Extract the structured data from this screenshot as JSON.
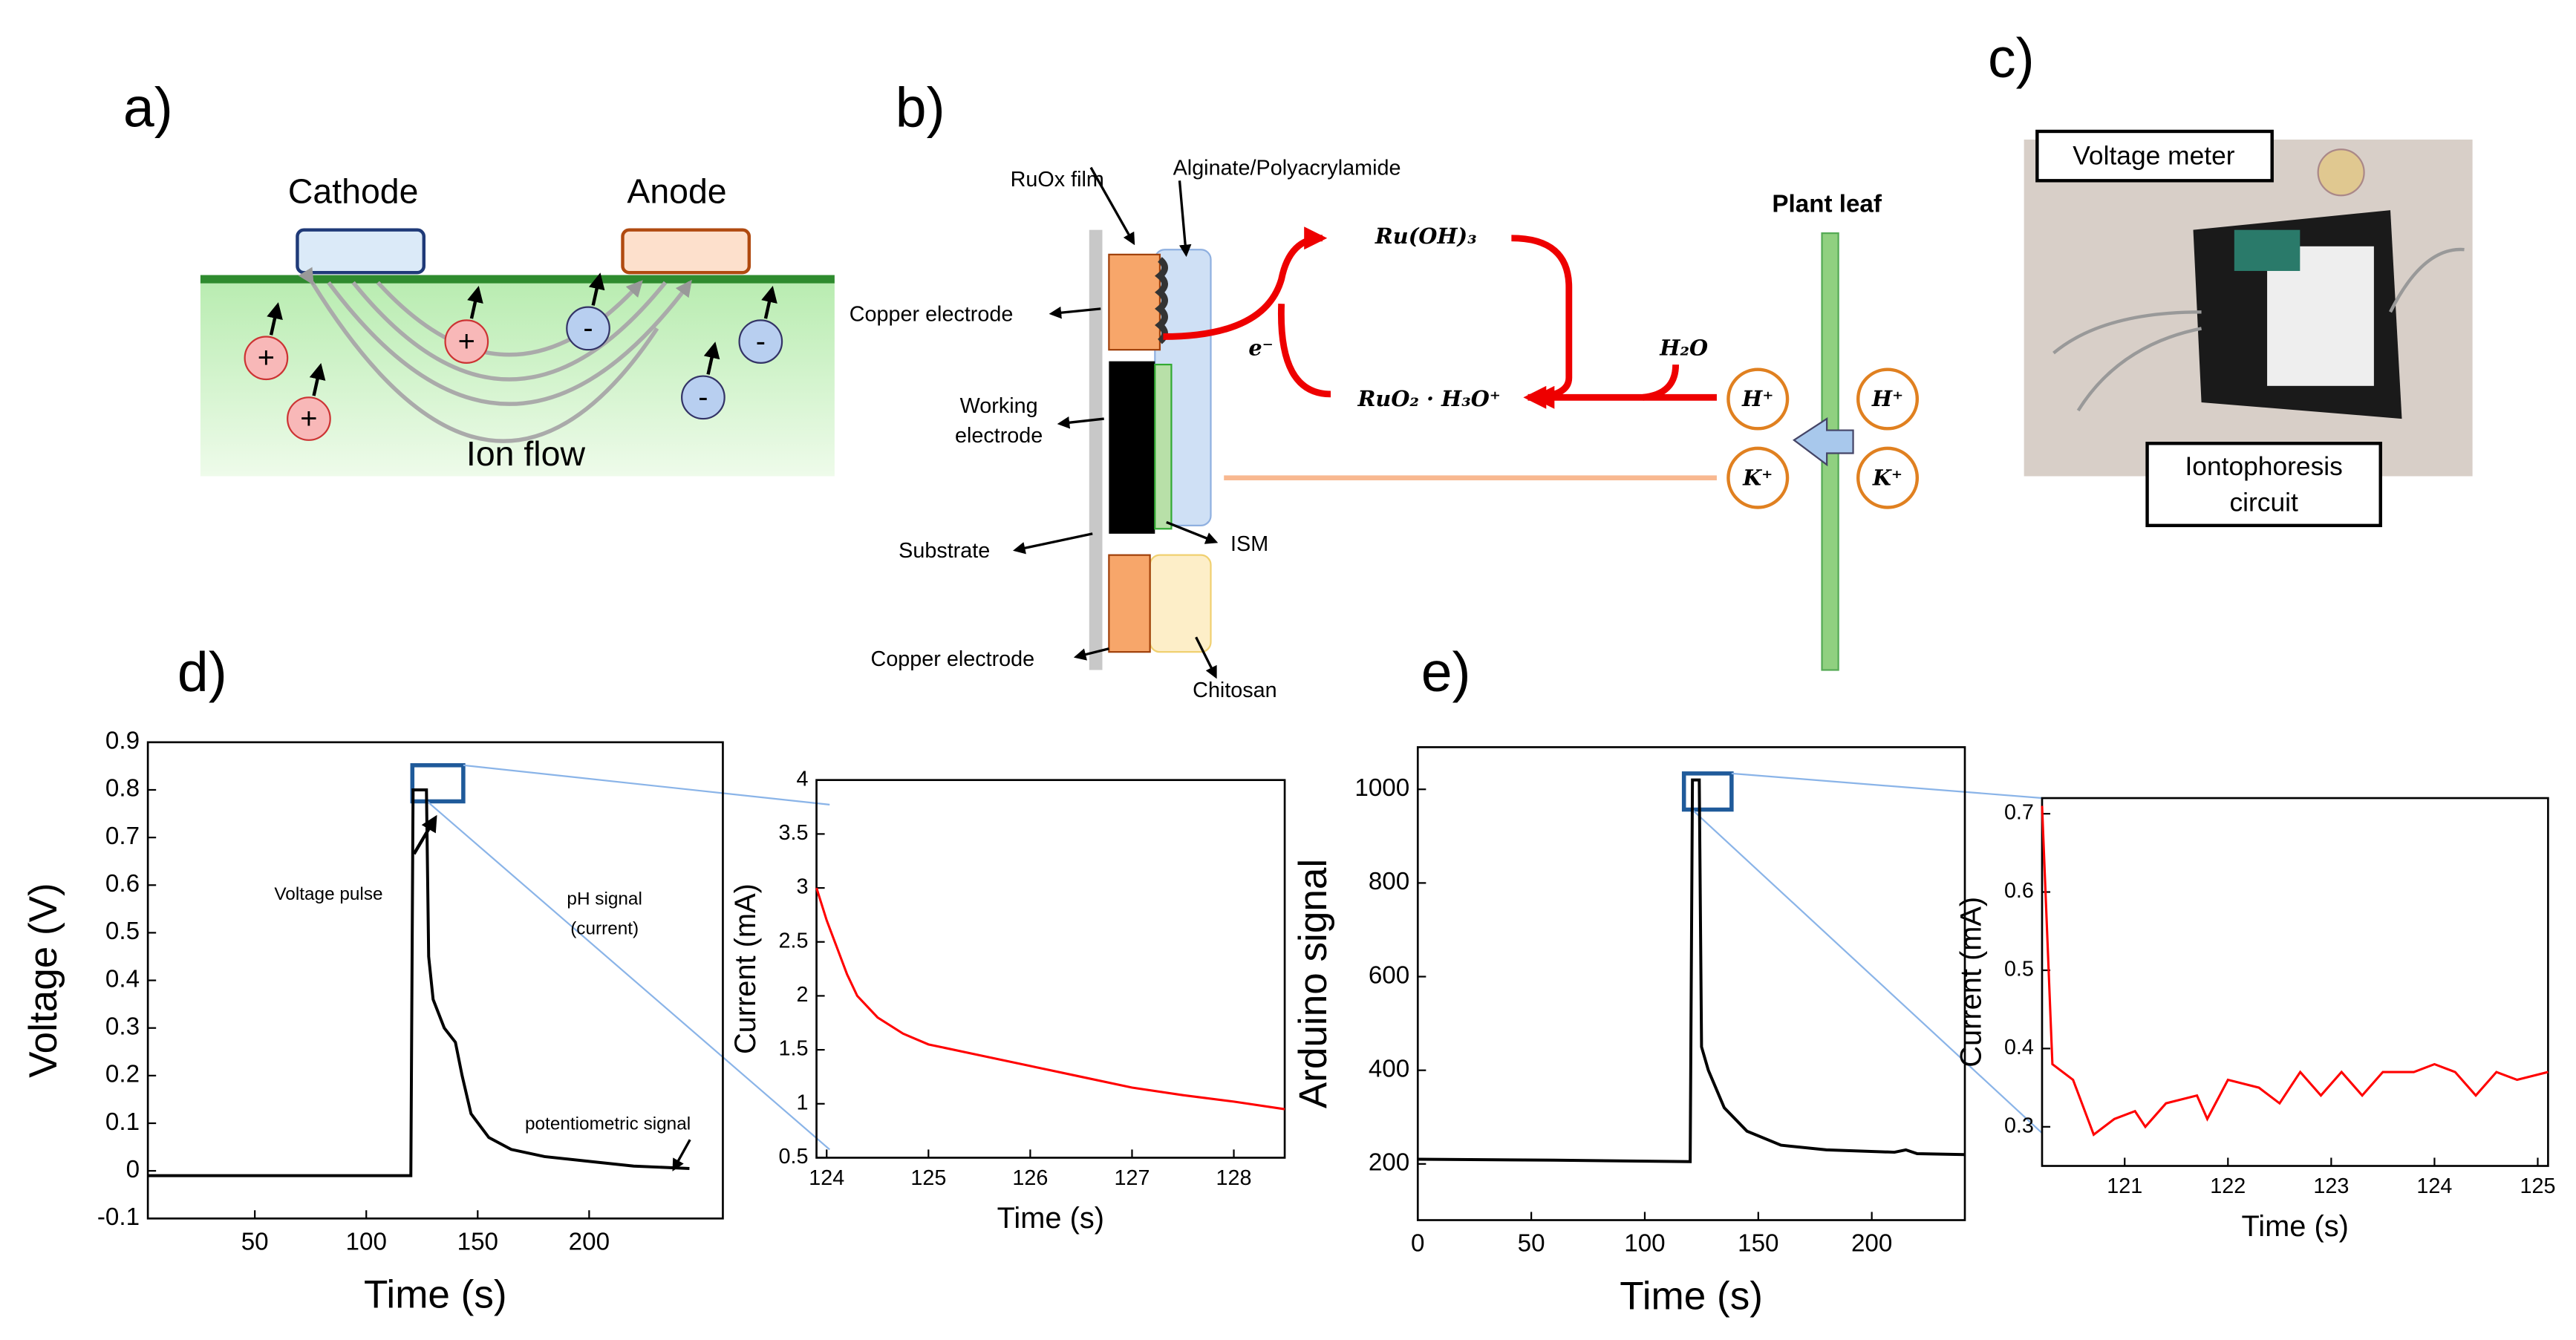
{
  "chart_data": [
    {
      "type": "line",
      "panel": "d)",
      "xlabel": "Time (s)",
      "ylabel": "Voltage (V)",
      "xlim": [
        2,
        260
      ],
      "ylim": [
        -0.1,
        0.9
      ],
      "xticks": [
        50,
        100,
        150,
        200
      ],
      "yticks": [
        -0.1,
        0,
        0.1,
        0.2,
        0.3,
        0.4,
        0.5,
        0.6,
        0.7,
        0.8,
        0.9
      ],
      "color": "#000000",
      "x": [
        2,
        60,
        120,
        121,
        127,
        128,
        130,
        135,
        140,
        143,
        147,
        155,
        165,
        180,
        200,
        220,
        245
      ],
      "values": [
        -0.01,
        -0.01,
        -0.01,
        0.8,
        0.8,
        0.45,
        0.36,
        0.3,
        0.27,
        0.2,
        0.12,
        0.07,
        0.045,
        0.03,
        0.02,
        0.01,
        0.005
      ],
      "annotations": [
        "Voltage pulse",
        "pH signal",
        "(current)",
        "potentiometric signal"
      ]
    },
    {
      "type": "line",
      "xlabel": "Time (s)",
      "ylabel": "Current (mA)",
      "xlim": [
        123.9,
        128.5
      ],
      "ylim": [
        0.5,
        4
      ],
      "xticks": [
        124,
        125,
        126,
        127,
        128
      ],
      "yticks": [
        0.5,
        1,
        1.5,
        2,
        2.5,
        3,
        3.5,
        4
      ],
      "color": "#ff0000",
      "x": [
        123.9,
        124.0,
        124.1,
        124.2,
        124.3,
        124.5,
        124.75,
        125,
        125.5,
        126,
        126.5,
        127,
        127.5,
        128,
        128.5
      ],
      "values": [
        3.0,
        2.7,
        2.45,
        2.2,
        2.0,
        1.8,
        1.65,
        1.55,
        1.45,
        1.35,
        1.25,
        1.15,
        1.08,
        1.02,
        0.95
      ]
    },
    {
      "type": "line",
      "panel": "e)",
      "xlabel": "Time (s)",
      "ylabel": "Arduino signal",
      "xlim": [
        0,
        241
      ],
      "ylim": [
        80,
        1090
      ],
      "xticks": [
        0,
        50,
        100,
        150,
        200
      ],
      "yticks": [
        200,
        400,
        600,
        800,
        1000
      ],
      "color": "#000000",
      "x": [
        0,
        60,
        120,
        121,
        124,
        125,
        128,
        135,
        145,
        160,
        180,
        210,
        215,
        220,
        241
      ],
      "values": [
        210,
        208,
        205,
        1020,
        1020,
        450,
        400,
        320,
        270,
        240,
        230,
        225,
        230,
        222,
        220
      ]
    },
    {
      "type": "line",
      "xlabel": "Time (s)",
      "ylabel": "Current (mA)",
      "xlim": [
        120.2,
        125.1
      ],
      "ylim": [
        0.25,
        0.72
      ],
      "xticks": [
        121,
        122,
        123,
        124,
        125
      ],
      "yticks": [
        0.3,
        0.4,
        0.5,
        0.6,
        0.7
      ],
      "color": "#ff0000",
      "x": [
        120.2,
        120.3,
        120.5,
        120.7,
        120.9,
        121.1,
        121.2,
        121.4,
        121.7,
        121.8,
        122,
        122.3,
        122.5,
        122.7,
        122.9,
        123.1,
        123.3,
        123.5,
        123.8,
        124,
        124.2,
        124.4,
        124.6,
        124.8,
        125.1
      ],
      "values": [
        0.71,
        0.38,
        0.36,
        0.29,
        0.31,
        0.32,
        0.3,
        0.33,
        0.34,
        0.31,
        0.36,
        0.35,
        0.33,
        0.37,
        0.34,
        0.37,
        0.34,
        0.37,
        0.37,
        0.38,
        0.37,
        0.34,
        0.37,
        0.36,
        0.37
      ]
    }
  ],
  "panels": {
    "a": {
      "label": "a)",
      "cathode": "Cathode",
      "anode": "Anode",
      "flow": "Ion flow",
      "ions": [
        "+",
        "+",
        "+",
        "-",
        "-",
        "-"
      ]
    },
    "b": {
      "label": "b)",
      "ruox": "RuOx film",
      "gel": "Alginate/Polyacrylamide",
      "cu1": "Copper electrode",
      "we1": "Working",
      "we2": "electrode",
      "substrate": "Substrate",
      "cu2": "Copper electrode",
      "chitosan": "Chitosan",
      "ism": "ISM",
      "leaf": "Plant leaf",
      "ruoh": "Ru(OH)₃",
      "ruo2": "RuO₂ · H₃O⁺",
      "e": "e⁻",
      "h2o": "H₂O",
      "h1": "H⁺",
      "k1": "K⁺",
      "h2": "H⁺",
      "k2": "K⁺"
    },
    "c": {
      "label": "c)",
      "meter": "Voltage meter",
      "circ1": "Iontophoresis",
      "circ2": "circuit"
    }
  }
}
